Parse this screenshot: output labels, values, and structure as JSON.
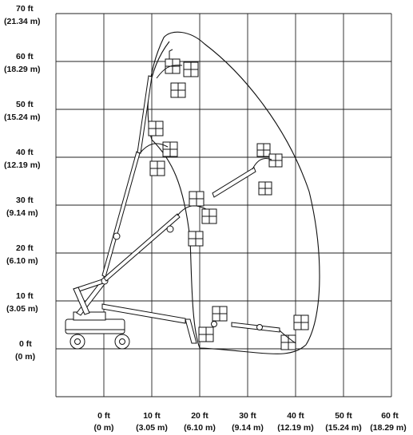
{
  "y_axis": [
    {
      "ft": "70 ft",
      "m": "(21.34 m)"
    },
    {
      "ft": "60 ft",
      "m": "(18.29 m)"
    },
    {
      "ft": "50 ft",
      "m": "(15.24 m)"
    },
    {
      "ft": "40 ft",
      "m": "(12.19 m)"
    },
    {
      "ft": "30 ft",
      "m": "(9.14 m)"
    },
    {
      "ft": "20 ft",
      "m": "(6.10 m)"
    },
    {
      "ft": "10 ft",
      "m": "(3.05 m)"
    },
    {
      "ft": "0 ft",
      "m": "(0 m)"
    }
  ],
  "x_axis": [
    {
      "ft": "0 ft",
      "m": "(0 m)"
    },
    {
      "ft": "10 ft",
      "m": "(3.05 m)"
    },
    {
      "ft": "20 ft",
      "m": "(6.10 m)"
    },
    {
      "ft": "30 ft",
      "m": "(9.14 m)"
    },
    {
      "ft": "40 ft",
      "m": "(12.19 m)"
    },
    {
      "ft": "50 ft",
      "m": "(15.24 m)"
    },
    {
      "ft": "60 ft",
      "m": "(18.29 m)"
    }
  ],
  "colors": {
    "line": "#111111",
    "background": "#ffffff"
  }
}
